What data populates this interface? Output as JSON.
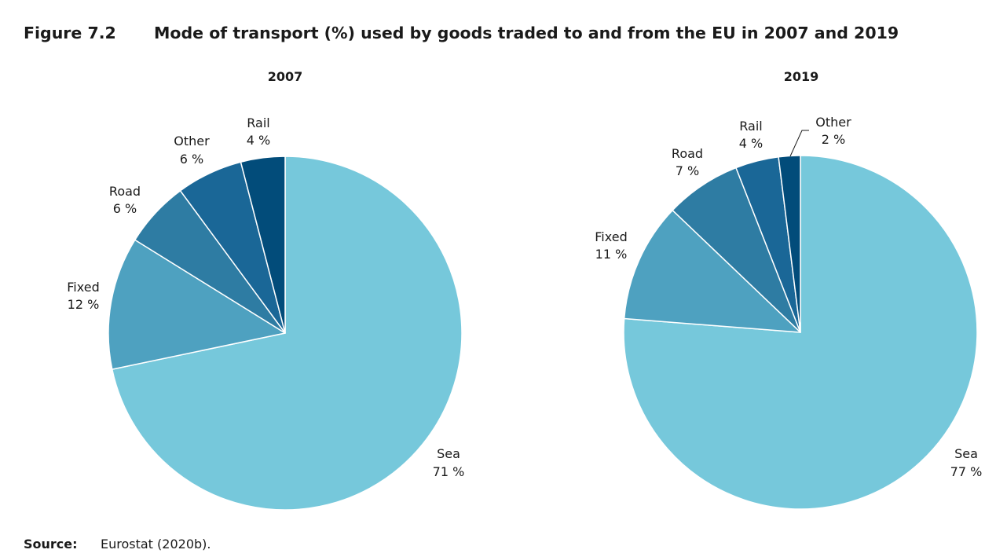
{
  "figure": {
    "number": "Figure 7.2",
    "title": "Mode of transport (%) used by goods traded to and from the EU in 2007 and 2019"
  },
  "source": {
    "label": "Source:",
    "text": "Eurostat (2020b)."
  },
  "colors": {
    "Sea": "#76c8db",
    "Fixed": "#4ea1c0",
    "Road": "#2e7ca3",
    "Other": "#1a6797",
    "Rail": "#024c7a",
    "separator": "#ffffff"
  },
  "chart_data": [
    {
      "type": "pie",
      "title": "2007",
      "unit": "%",
      "slices": [
        {
          "label": "Sea",
          "value": 71,
          "text": "71 %",
          "color_key": "Sea"
        },
        {
          "label": "Fixed",
          "value": 12,
          "text": "12 %",
          "color_key": "Fixed"
        },
        {
          "label": "Road",
          "value": 6,
          "text": "6 %",
          "color_key": "Road"
        },
        {
          "label": "Other",
          "value": 6,
          "text": "6 %",
          "color_key": "Other"
        },
        {
          "label": "Rail",
          "value": 4,
          "text": "4 %",
          "color_key": "Rail"
        }
      ]
    },
    {
      "type": "pie",
      "title": "2019",
      "unit": "%",
      "slices": [
        {
          "label": "Sea",
          "value": 77,
          "text": "77 %",
          "color_key": "Sea"
        },
        {
          "label": "Fixed",
          "value": 11,
          "text": "11 %",
          "color_key": "Fixed"
        },
        {
          "label": "Road",
          "value": 7,
          "text": "7 %",
          "color_key": "Road"
        },
        {
          "label": "Rail",
          "value": 4,
          "text": "4 %",
          "color_key": "Other"
        },
        {
          "label": "Other",
          "value": 2,
          "text": "2 %",
          "color_key": "Rail"
        }
      ]
    }
  ]
}
